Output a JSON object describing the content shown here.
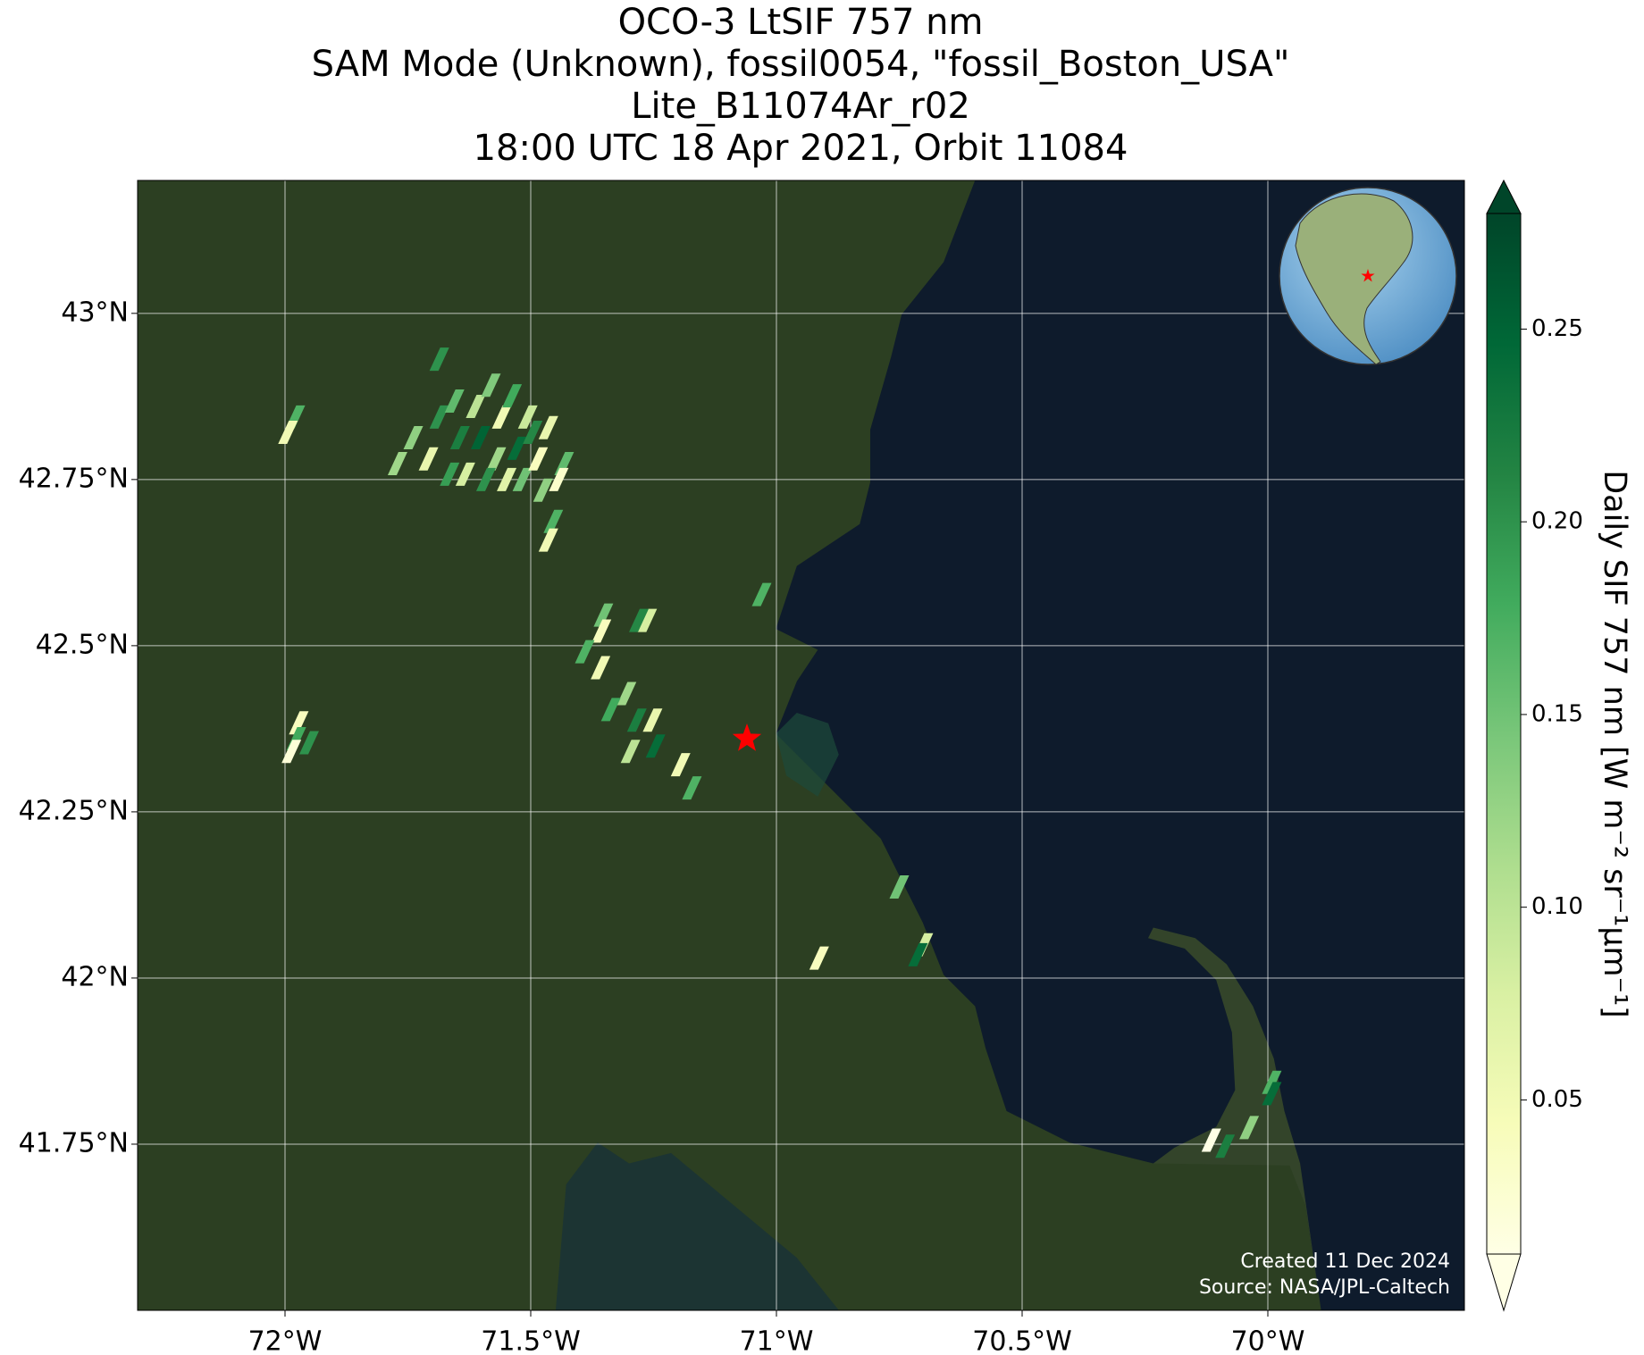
{
  "chart_data": {
    "type": "map",
    "title_lines": [
      "OCO-3 LtSIF 757 nm",
      "SAM Mode (Unknown), fossil0054, \"fossil_Boston_USA\"",
      "Lite_B11074Ar_r02",
      "18:00 UTC 18 Apr 2021, Orbit 11084"
    ],
    "xlim": [
      -72.3,
      -69.6
    ],
    "ylim": [
      41.5,
      43.2
    ],
    "xticks": [
      {
        "value": -72,
        "label": "72°W"
      },
      {
        "value": -71.5,
        "label": "71.5°W"
      },
      {
        "value": -71,
        "label": "71°W"
      },
      {
        "value": -70.5,
        "label": "70.5°W"
      },
      {
        "value": -70,
        "label": "70°W"
      }
    ],
    "yticks": [
      {
        "value": 43,
        "label": "43°N"
      },
      {
        "value": 42.75,
        "label": "42.75°N"
      },
      {
        "value": 42.5,
        "label": "42.5°N"
      },
      {
        "value": 42.25,
        "label": "42.25°N"
      },
      {
        "value": 42,
        "label": "42°N"
      },
      {
        "value": 41.75,
        "label": "41.75°N"
      }
    ],
    "grid": true,
    "colormap": [
      "#ffffe5",
      "#f7fcb9",
      "#d9f0a3",
      "#addd8e",
      "#78c679",
      "#41ab5d",
      "#238443",
      "#006837",
      "#004529"
    ],
    "clim": [
      0.01,
      0.28
    ],
    "cticks": [
      0.05,
      {
        "value": 0.1,
        "label": "0.10"
      },
      0.15,
      {
        "value": 0.2,
        "label": "0.20"
      },
      0.25
    ],
    "colorbar_label": "Daily SIF 757 nm [W m⁻² sr⁻¹μm⁻¹]",
    "target": {
      "x": -71.06,
      "y": 42.36,
      "color": "#ff0000"
    },
    "x": [
      -71.686,
      -71.979,
      -71.994,
      -71.771,
      -71.739,
      -71.708,
      -71.686,
      -71.655,
      -71.644,
      -71.633,
      -71.612,
      -71.602,
      -71.581,
      -71.57,
      -71.559,
      -71.538,
      -71.528,
      -71.517,
      -71.506,
      -71.496,
      -71.485,
      -71.475,
      -71.464,
      -71.454,
      -71.464,
      -71.432,
      -71.443,
      -71.665,
      -71.591,
      -71.549,
      -71.03,
      -71.352,
      -71.356,
      -71.263,
      -71.28,
      -71.39,
      -71.358,
      -71.305,
      -71.337,
      -71.284,
      -71.252,
      -71.297,
      -71.246,
      -71.195,
      -71.172,
      -71.972,
      -71.977,
      -71.987,
      -71.951,
      -70.75,
      -70.701,
      -70.712,
      -70.913,
      -69.992,
      -69.992,
      -70.038,
      -70.087,
      -70.115
    ],
    "y": [
      42.931,
      42.844,
      42.821,
      42.774,
      42.813,
      42.781,
      42.844,
      42.868,
      42.813,
      42.758,
      42.86,
      42.813,
      42.892,
      42.781,
      42.844,
      42.876,
      42.797,
      42.75,
      42.844,
      42.821,
      42.781,
      42.734,
      42.828,
      42.687,
      42.659,
      42.774,
      42.75,
      42.758,
      42.75,
      42.75,
      42.577,
      42.546,
      42.522,
      42.538,
      42.538,
      42.491,
      42.467,
      42.428,
      42.404,
      42.388,
      42.388,
      42.341,
      42.349,
      42.321,
      42.286,
      42.384,
      42.36,
      42.341,
      42.354,
      42.137,
      42.05,
      42.035,
      42.03,
      41.843,
      41.826,
      41.775,
      41.747,
      41.756
    ],
    "values": [
      0.2,
      0.17,
      0.05,
      0.12,
      0.13,
      0.06,
      0.2,
      0.16,
      0.22,
      0.08,
      0.1,
      0.25,
      0.14,
      0.12,
      0.05,
      0.18,
      0.24,
      0.15,
      0.09,
      0.21,
      0.04,
      0.13,
      0.06,
      0.17,
      0.05,
      0.16,
      0.03,
      0.19,
      0.2,
      0.07,
      0.17,
      0.15,
      0.04,
      0.08,
      0.21,
      0.17,
      0.05,
      0.12,
      0.18,
      0.22,
      0.06,
      0.1,
      0.24,
      0.05,
      0.17,
      0.04,
      0.18,
      0.02,
      0.2,
      0.15,
      0.08,
      0.24,
      0.04,
      0.17,
      0.24,
      0.13,
      0.22,
      0.01
    ],
    "credits": [
      "Created 11 Dec 2024",
      "Source: NASA/JPL-Caltech"
    ]
  }
}
